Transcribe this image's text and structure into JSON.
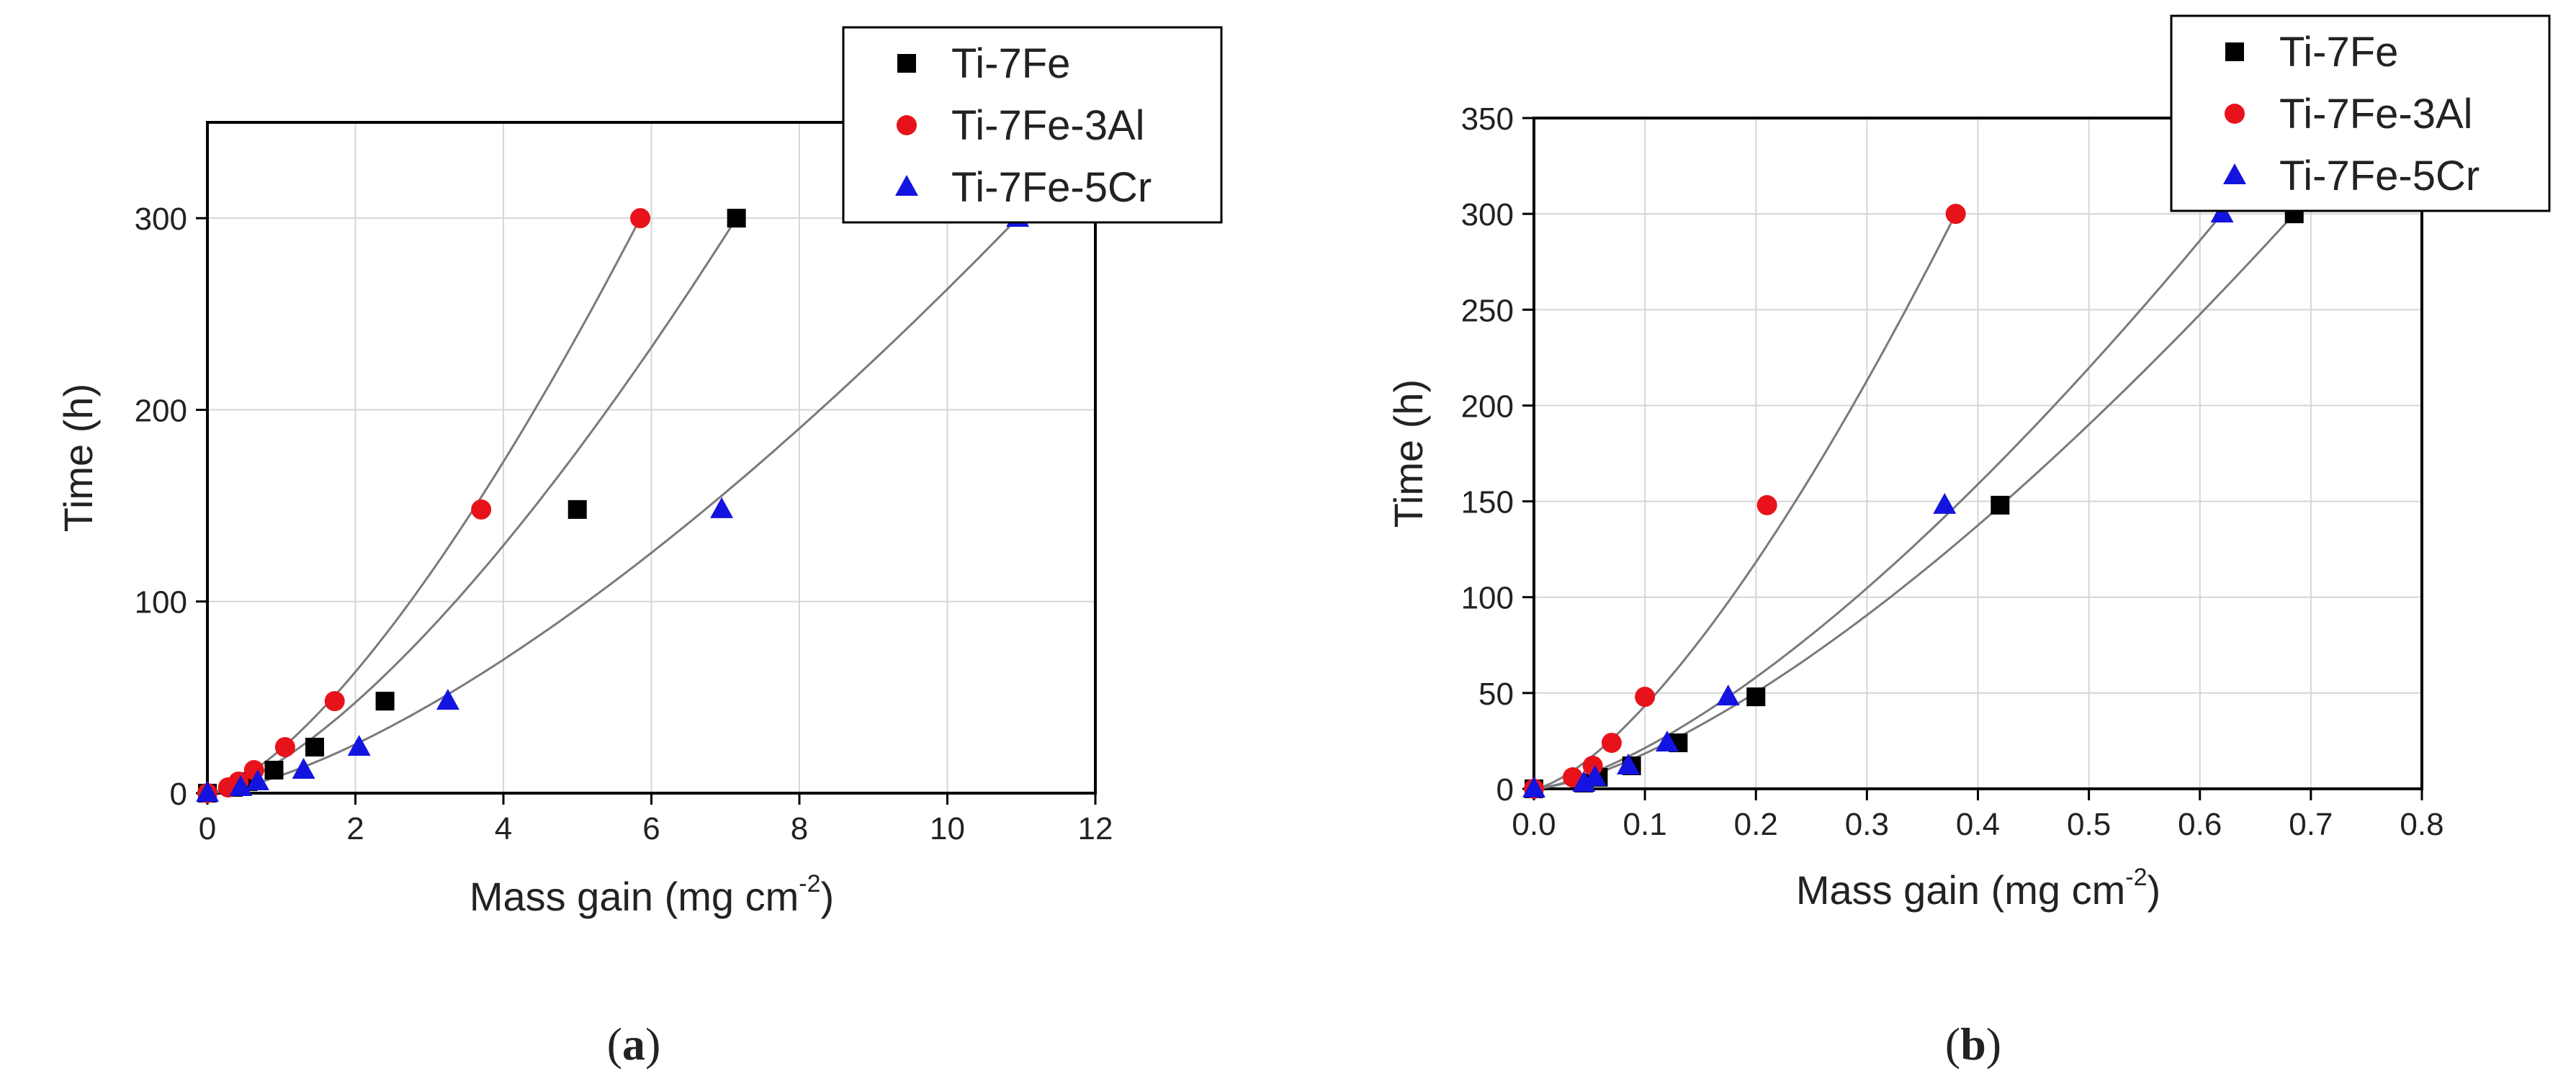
{
  "colors": {
    "ti7fe": "#000000",
    "ti7fe3al": "#e8121b",
    "ti7fe5cr": "#1414e0",
    "fit_line": "#7a7a7a",
    "grid": "#d6d6d6",
    "axis": "#000000"
  },
  "chart_data": [
    {
      "type": "scatter",
      "panel_label": "a",
      "xlabel": "Mass gain (mg cm",
      "xlabel_sup": "-2",
      "xlabel_suffix": ")",
      "ylabel": "Time (h)",
      "xlim": [
        0,
        12
      ],
      "ylim": [
        0,
        350
      ],
      "xticks": [
        0,
        2,
        4,
        6,
        8,
        10,
        12
      ],
      "yticks": [
        0,
        100,
        200,
        300
      ],
      "xtick_labels": [
        "0",
        "2",
        "4",
        "6",
        "8",
        "10",
        "12"
      ],
      "ytick_labels": [
        "0",
        "100",
        "200",
        "300"
      ],
      "grid": true,
      "legend": "top-right",
      "fit_curves": true,
      "series": [
        {
          "name": "Ti-7Fe",
          "marker": "square",
          "x": [
            0,
            0.35,
            0.55,
            0.9,
            1.45,
            2.4,
            5.0,
            7.15
          ],
          "y": [
            0,
            3,
            6,
            12,
            24,
            48,
            148,
            300
          ]
        },
        {
          "name": "Ti-7Fe-3Al",
          "marker": "circle",
          "x": [
            0,
            0.28,
            0.42,
            0.63,
            1.05,
            1.72,
            3.7,
            5.85
          ],
          "y": [
            0,
            3,
            6,
            12,
            24,
            48,
            148,
            300
          ]
        },
        {
          "name": "Ti-7Fe-5Cr",
          "marker": "triangle",
          "x": [
            0,
            0.45,
            0.68,
            1.3,
            2.05,
            3.25,
            6.95,
            10.95
          ],
          "y": [
            0,
            3,
            6,
            12,
            24,
            48,
            148,
            300
          ]
        }
      ]
    },
    {
      "type": "scatter",
      "panel_label": "b",
      "xlabel": "Mass gain (mg cm",
      "xlabel_sup": "-2",
      "xlabel_suffix": ")",
      "ylabel": "Time (h)",
      "xlim": [
        0,
        0.8
      ],
      "ylim": [
        0,
        350
      ],
      "xticks": [
        0,
        0.1,
        0.2,
        0.3,
        0.4,
        0.5,
        0.6,
        0.7,
        0.8
      ],
      "yticks": [
        0,
        50,
        100,
        150,
        200,
        250,
        300,
        350
      ],
      "xtick_labels": [
        "0.0",
        "0.1",
        "0.2",
        "0.3",
        "0.4",
        "0.5",
        "0.6",
        "0.7",
        "0.8"
      ],
      "ytick_labels": [
        "0",
        "50",
        "100",
        "150",
        "200",
        "250",
        "300",
        "350"
      ],
      "grid": true,
      "legend": "top-right",
      "fit_curves": true,
      "series": [
        {
          "name": "Ti-7Fe",
          "marker": "square",
          "x": [
            0,
            0.045,
            0.058,
            0.088,
            0.13,
            0.2,
            0.42,
            0.685
          ],
          "y": [
            0,
            3,
            6,
            12,
            24,
            48,
            148,
            300
          ]
        },
        {
          "name": "Ti-7Fe-3Al",
          "marker": "circle",
          "x": [
            0,
            0.035,
            0.053,
            0.07,
            0.1,
            0.21,
            0.38
          ],
          "y": [
            0,
            6,
            12,
            24,
            48,
            148,
            300
          ]
        },
        {
          "name": "Ti-7Fe-5Cr",
          "marker": "triangle",
          "x": [
            0,
            0.045,
            0.055,
            0.085,
            0.12,
            0.175,
            0.37,
            0.62
          ],
          "y": [
            0,
            3,
            6,
            12,
            24,
            48,
            148,
            300
          ]
        }
      ]
    }
  ]
}
